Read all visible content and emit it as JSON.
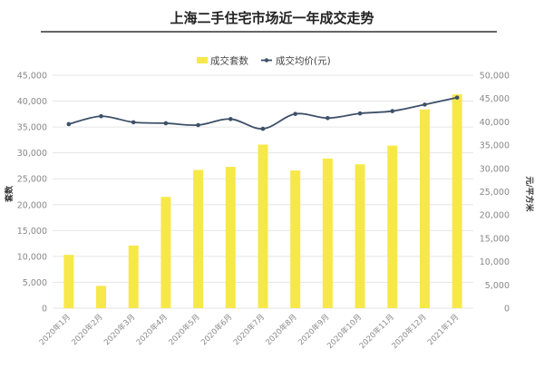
{
  "chart_data": {
    "type": "bar",
    "title": "上海二手住宅市场近一年成交走势",
    "categories": [
      "2020年1月",
      "2020年2月",
      "2020年3月",
      "2020年4月",
      "2020年5月",
      "2020年6月",
      "2020年7月",
      "2020年8月",
      "2020年9月",
      "2020年10月",
      "2020年11月",
      "2020年12月",
      "2021年1月"
    ],
    "series": [
      {
        "name": "成交套数",
        "type": "bar",
        "axis": "left",
        "color": "#f7e84a",
        "values": [
          10300,
          4300,
          12100,
          21500,
          26700,
          27300,
          31600,
          26600,
          28900,
          27800,
          31400,
          38400,
          41300
        ]
      },
      {
        "name": "成交均价(元)",
        "type": "line",
        "axis": "right",
        "color": "#3d5068",
        "values": [
          39500,
          41200,
          39900,
          39700,
          39300,
          40600,
          38500,
          41700,
          40800,
          41800,
          42300,
          43700,
          45200
        ]
      }
    ],
    "ylabel": "套数",
    "y2label": "元/平方米",
    "ylim": [
      0,
      45000
    ],
    "y2lim": [
      0,
      50000
    ],
    "yticks": [
      "0",
      "5,000",
      "10,000",
      "15,000",
      "20,000",
      "25,000",
      "30,000",
      "35,000",
      "40,000",
      "45,000"
    ],
    "y2ticks": [
      "0",
      "5,000",
      "10,000",
      "15,000",
      "20,000",
      "25,000",
      "30,000",
      "35,000",
      "40,000",
      "45,000",
      "50,000"
    ],
    "grid": true,
    "legend": "top-center"
  }
}
